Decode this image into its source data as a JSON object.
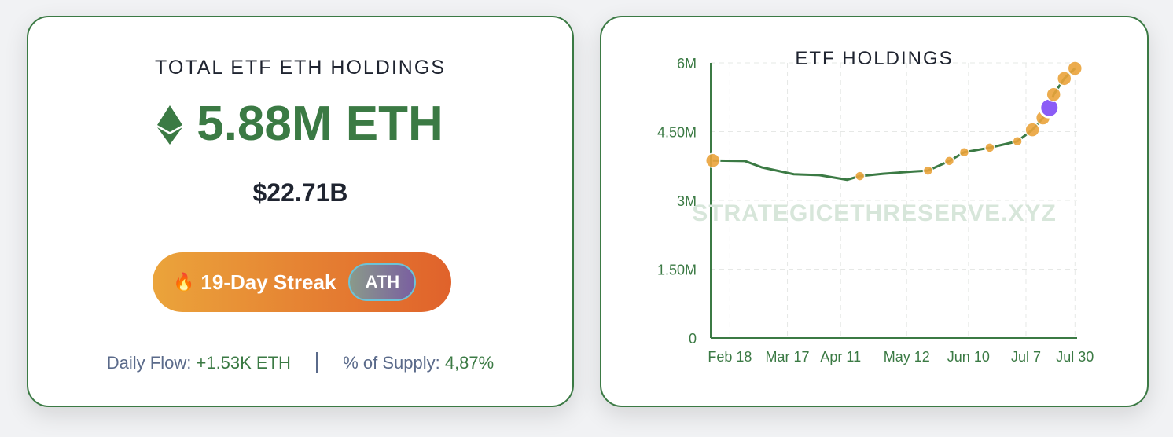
{
  "summary": {
    "title": "TOTAL ETF ETH HOLDINGS",
    "holdings": "5.88M ETH",
    "usd_value": "$22.71B",
    "streak_emoji": "🔥",
    "streak_label": "19-Day Streak",
    "ath_badge": "ATH",
    "daily_flow_label": "Daily Flow:",
    "daily_flow_value": "+1.53K ETH",
    "supply_label": "% of Supply:",
    "supply_value": "4,87%",
    "icon": "ethereum-icon"
  },
  "colors": {
    "accent": "#3b7a44",
    "marker": "#eba43b",
    "highlight": "#8b5cf6"
  },
  "chart_data": {
    "type": "line",
    "title": "ETF HOLDINGS",
    "watermark": "STRATEGICETHRESERVE.XYZ",
    "y_ticks": [
      "0",
      "1.50M",
      "3M",
      "4.50M",
      "6M"
    ],
    "y_tick_values": [
      0,
      1500000,
      3000000,
      4500000,
      6000000
    ],
    "ylim": [
      0,
      6000000
    ],
    "x_ticks": [
      {
        "label": "Feb 18",
        "date": "2025-02-18"
      },
      {
        "label": "Mar 17",
        "date": "2025-03-17"
      },
      {
        "label": "Apr 11",
        "date": "2025-04-11"
      },
      {
        "label": "May 12",
        "date": "2025-05-12"
      },
      {
        "label": "Jun 10",
        "date": "2025-06-10"
      },
      {
        "label": "Jul 7",
        "date": "2025-07-07"
      },
      {
        "label": "Jul 30",
        "date": "2025-07-30"
      }
    ],
    "grid": true,
    "series": [
      {
        "points": [
          {
            "date": "2025-02-10",
            "value": 3870000,
            "marker": true
          },
          {
            "date": "2025-02-25",
            "value": 3860000
          },
          {
            "date": "2025-03-05",
            "value": 3720000
          },
          {
            "date": "2025-03-20",
            "value": 3570000
          },
          {
            "date": "2025-04-01",
            "value": 3550000
          },
          {
            "date": "2025-04-14",
            "value": 3450000
          },
          {
            "date": "2025-04-20",
            "value": 3530000,
            "marker": true
          },
          {
            "date": "2025-05-01",
            "value": 3580000
          },
          {
            "date": "2025-05-15",
            "value": 3630000
          },
          {
            "date": "2025-05-22",
            "value": 3650000,
            "marker": true
          },
          {
            "date": "2025-06-01",
            "value": 3860000,
            "marker": true
          },
          {
            "date": "2025-06-08",
            "value": 4050000,
            "marker": true
          },
          {
            "date": "2025-06-20",
            "value": 4150000,
            "marker": true
          },
          {
            "date": "2025-07-03",
            "value": 4290000,
            "marker": true
          },
          {
            "date": "2025-07-10",
            "value": 4540000,
            "marker": true
          },
          {
            "date": "2025-07-15",
            "value": 4800000,
            "marker": true
          },
          {
            "date": "2025-07-18",
            "value": 5020000,
            "highlight": true
          },
          {
            "date": "2025-07-20",
            "value": 5310000,
            "marker": true
          },
          {
            "date": "2025-07-25",
            "value": 5660000,
            "marker": true
          },
          {
            "date": "2025-07-30",
            "value": 5880000,
            "marker": true
          }
        ]
      }
    ]
  }
}
